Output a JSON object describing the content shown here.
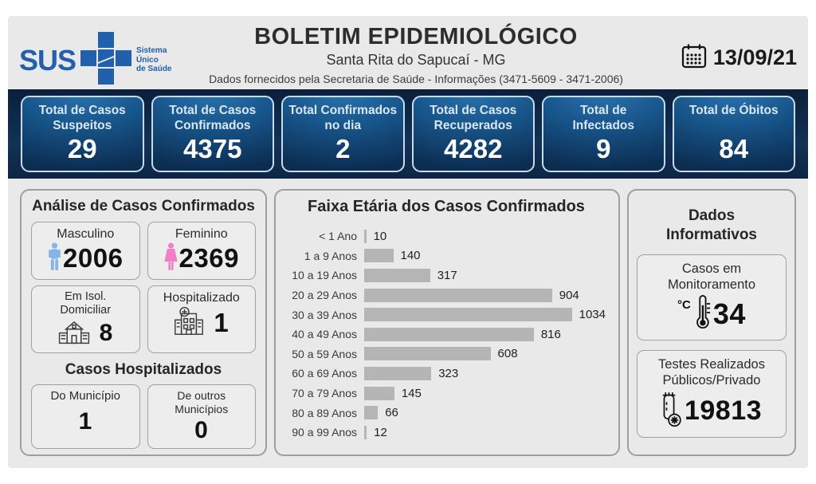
{
  "colors": {
    "sus_blue": "#2160ac",
    "band_bg": "#0d2544",
    "card_border": "#c6dcee",
    "bar_gray": "#b5b5b5",
    "male_blue": "#85b4e8",
    "female_pink": "#f07fc6"
  },
  "header": {
    "logo_text": "SUS",
    "logo_tagline": "Sistema\nÚnico\nde Saúde",
    "title": "BOLETIM EPIDEMIOLÓGICO",
    "subtitle": "Santa Rita do Sapucaí - MG",
    "info_line": "Dados fornecidos pela Secretaria de Saúde - Informações (3471-5609 - 3471-2006)",
    "date": "13/09/21"
  },
  "summary_cards": [
    {
      "label": "Total de Casos\nSuspeitos",
      "value": "29"
    },
    {
      "label": "Total de Casos\nConfirmados",
      "value": "4375"
    },
    {
      "label": "Total Confirmados\nno dia",
      "value": "2"
    },
    {
      "label": "Total de Casos\nRecuperados",
      "value": "4282"
    },
    {
      "label": "Total de\nInfectados",
      "value": "9"
    },
    {
      "label": "Total de Óbitos",
      "value": "84"
    }
  ],
  "analysis_panel": {
    "title": "Análise de Casos Confirmados",
    "male": {
      "label": "Masculino",
      "value": "2006",
      "icon": "male-icon"
    },
    "female": {
      "label": "Feminino",
      "value": "2369",
      "icon": "female-icon"
    },
    "isolation": {
      "label": "Em Isol.\nDomiciliar",
      "value": "8",
      "icon": "house-icon"
    },
    "hospitalized": {
      "label": "Hospitalizado",
      "value": "1",
      "icon": "hospital-icon"
    },
    "subsection_title": "Casos Hospitalizados",
    "city": {
      "label": "Do Município",
      "value": "1"
    },
    "other_cities": {
      "label": "De outros\nMunicípios",
      "value": "0"
    }
  },
  "chart_data": {
    "type": "bar",
    "orientation": "horizontal",
    "title": "Faixa Etária dos Casos Confirmados",
    "categories": [
      "< 1 Ano",
      "1 a 9 Anos",
      "10 a 19 Anos",
      "20 a 29 Anos",
      "30 a 39 Anos",
      "40 a 49 Anos",
      "50 a 59 Anos",
      "60 a 69 Anos",
      "70 a 79 Anos",
      "80 a 89 Anos",
      "90 a 99 Anos"
    ],
    "values": [
      10,
      140,
      317,
      904,
      1034,
      816,
      608,
      323,
      145,
      66,
      12
    ],
    "xlabel": "",
    "ylabel": "",
    "xlim": [
      0,
      1100
    ],
    "grid": false,
    "legend": false,
    "bar_color": "#b5b5b5",
    "value_labels": [
      "10",
      "140",
      "317",
      "904",
      "1034",
      "816",
      "608",
      "323",
      "145",
      "66",
      "12"
    ]
  },
  "info_panel": {
    "title": "Dados\nInformativos",
    "monitoring": {
      "label": "Casos em\nMonitoramento",
      "value": "34",
      "icon": "thermometer-icon",
      "unit_prefix": "°C"
    },
    "tests": {
      "label": "Testes Realizados\nPúblicos/Privado",
      "value": "19813",
      "icon": "test-tube-icon"
    }
  }
}
